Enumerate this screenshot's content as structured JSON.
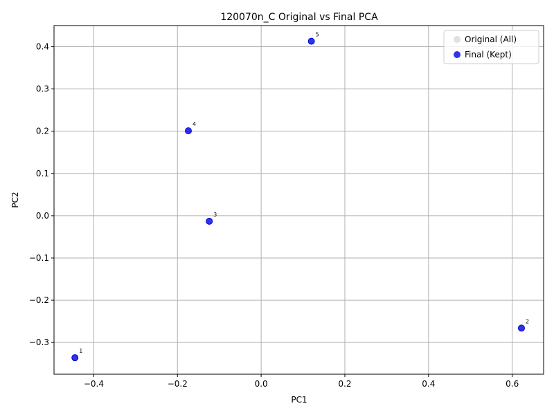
{
  "chart_data": {
    "type": "scatter",
    "title": "120070n_C Original vs Final PCA",
    "xlabel": "PC1",
    "ylabel": "PC2",
    "xlim": [
      -0.495,
      0.675
    ],
    "ylim": [
      -0.375,
      0.45
    ],
    "xticks": [
      -0.4,
      -0.2,
      0.0,
      0.2,
      0.4,
      0.6
    ],
    "xtick_labels": [
      "−0.4",
      "−0.2",
      "0.0",
      "0.2",
      "0.4",
      "0.6"
    ],
    "yticks": [
      -0.3,
      -0.2,
      -0.1,
      0.0,
      0.1,
      0.2,
      0.3,
      0.4
    ],
    "ytick_labels": [
      "−0.3",
      "−0.2",
      "−0.1",
      "0.0",
      "0.1",
      "0.2",
      "0.3",
      "0.4"
    ],
    "grid": true,
    "legend_position": "top-right",
    "series": [
      {
        "name": "Original (All)",
        "color": "#e0e0e0",
        "points": []
      },
      {
        "name": "Final (Kept)",
        "color": "#0000e0",
        "points": [
          {
            "label": "1",
            "x": -0.445,
            "y": -0.336
          },
          {
            "label": "2",
            "x": 0.622,
            "y": -0.266
          },
          {
            "label": "3",
            "x": -0.124,
            "y": -0.013
          },
          {
            "label": "4",
            "x": -0.174,
            "y": 0.201
          },
          {
            "label": "5",
            "x": 0.12,
            "y": 0.413
          }
        ]
      }
    ]
  }
}
